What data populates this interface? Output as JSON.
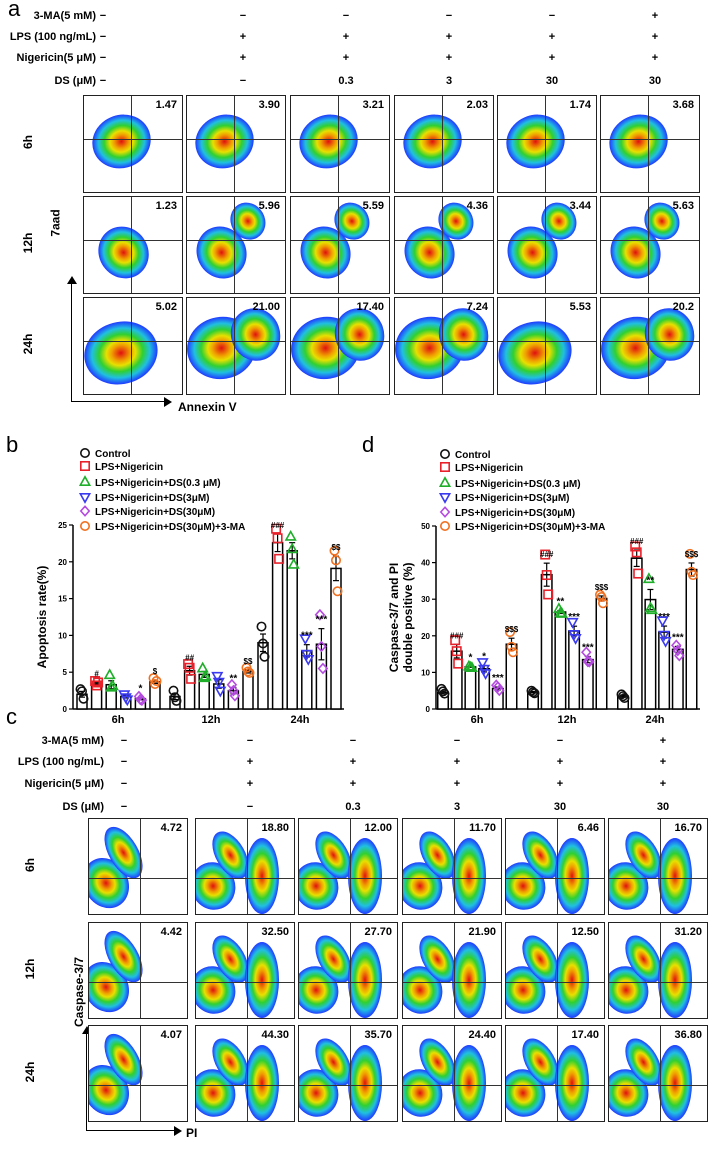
{
  "panel_letters": {
    "a": "a",
    "b": "b",
    "c": "c",
    "d": "d"
  },
  "panel_a": {
    "row_labels": [
      "3-MA(5 mM)",
      "LPS (100 ng/mL)",
      "Nigericin(5 μM)",
      "DS (μM)"
    ],
    "marks": [
      [
        "−",
        "−",
        "−",
        "−",
        "−",
        "+"
      ],
      [
        "−",
        "+",
        "+",
        "+",
        "+",
        "+"
      ],
      [
        "−",
        "+",
        "+",
        "+",
        "+",
        "+"
      ],
      [
        "−",
        "−",
        "0.3",
        "3",
        "30",
        "30"
      ]
    ],
    "times": [
      "6h",
      "12h",
      "24h"
    ],
    "values": [
      [
        "1.47",
        "3.90",
        "3.21",
        "2.03",
        "1.74",
        "3.68"
      ],
      [
        "1.23",
        "5.96",
        "5.59",
        "4.36",
        "3.44",
        "5.63"
      ],
      [
        "5.02",
        "21.00",
        "17.40",
        "7.24",
        "5.53",
        "20.2"
      ]
    ],
    "y_axis": "7aad",
    "x_axis": "Annexin V"
  },
  "panel_c": {
    "row_labels": [
      "3-MA(5 mM)",
      "LPS (100 ng/mL)",
      "Nigericin(5 μM)",
      "DS (μM)"
    ],
    "marks": [
      [
        "−",
        "−",
        "−",
        "−",
        "−",
        "+"
      ],
      [
        "−",
        "+",
        "+",
        "+",
        "+",
        "+"
      ],
      [
        "−",
        "+",
        "+",
        "+",
        "+",
        "+"
      ],
      [
        "−",
        "−",
        "0.3",
        "3",
        "30",
        "30"
      ]
    ],
    "times": [
      "6h",
      "12h",
      "24h"
    ],
    "values": [
      [
        "4.72",
        "18.80",
        "12.00",
        "11.70",
        "6.46",
        "16.70"
      ],
      [
        "4.42",
        "32.50",
        "27.70",
        "21.90",
        "12.50",
        "31.20"
      ],
      [
        "4.07",
        "44.30",
        "35.70",
        "24.40",
        "17.40",
        "36.80"
      ]
    ],
    "y_axis": "Caspase-3/7",
    "x_axis": "PI"
  },
  "colors": [
    "#111111",
    "#e8202a",
    "#1fae2a",
    "#3a3af0",
    "#b44be0",
    "#f07020"
  ],
  "chart_data": [
    {
      "type": "bar",
      "title": "",
      "ylabel": "Apoptosis rate(%)",
      "xlabel": "",
      "ylim": [
        0,
        25
      ],
      "yticks": [
        "0",
        "5",
        "10",
        "15",
        "20",
        "25"
      ],
      "categories": [
        "6h",
        "12h",
        "24h"
      ],
      "legend": [
        "Control",
        "LPS+Nigericin",
        "LPS+Nigericin+DS(0.3 μM)",
        "LPS+Nigericin+DS(3μM)",
        "LPS+Nigericin+DS(30μM)",
        "LPS+Nigericin+DS(30μM)+3-MA"
      ],
      "legend_position": "top-left",
      "series": [
        {
          "name": "Control",
          "values": [
            2.0,
            1.7,
            9.0
          ],
          "points": [
            [
              2.7,
              2.4,
              1.4
            ],
            [
              2.5,
              1.6,
              1.1
            ],
            [
              11.2,
              8.9,
              7.1
            ]
          ],
          "marker": "circle",
          "annotations": [
            "",
            "",
            ""
          ]
        },
        {
          "name": "LPS+Nigericin",
          "values": [
            3.4,
            5.2,
            22.6
          ],
          "points": [
            [
              3.8,
              3.2,
              3.6
            ],
            [
              6.1,
              5.6,
              4.1
            ],
            [
              24.5,
              23.2,
              20.4
            ]
          ],
          "marker": "square",
          "annotations": [
            "#",
            "##",
            "###"
          ]
        },
        {
          "name": "LPS+Nigericin+DS(0.3 μM)",
          "values": [
            3.3,
            4.7,
            21.5
          ],
          "points": [
            [
              4.6,
              2.9,
              3.1
            ],
            [
              5.5,
              4.2,
              4.4
            ],
            [
              23.4,
              21.7,
              19.6
            ]
          ],
          "marker": "triangle-up",
          "annotations": [
            "",
            "",
            ""
          ]
        },
        {
          "name": "LPS+Nigericin+DS(3μM)",
          "values": [
            1.7,
            3.4,
            7.9
          ],
          "points": [
            [
              2.0,
              1.6,
              1.3
            ],
            [
              4.5,
              3.7,
              2.5
            ],
            [
              9.6,
              7.5,
              6.8
            ]
          ],
          "marker": "triangle-down",
          "annotations": [
            "",
            "",
            "***"
          ]
        },
        {
          "name": "LPS+Nigericin+DS(30μM)",
          "values": [
            1.4,
            2.5,
            8.8
          ],
          "points": [
            [
              1.7,
              1.3,
              1.2
            ],
            [
              3.3,
              2.5,
              1.8
            ],
            [
              12.8,
              8.5,
              5.5
            ]
          ],
          "marker": "diamond",
          "annotations": [
            "*",
            "**",
            "***"
          ]
        },
        {
          "name": "LPS+Nigericin+DS(30μM)+3-MA",
          "values": [
            3.7,
            5.1,
            19.1
          ],
          "points": [
            [
              4.2,
              3.4,
              3.8
            ],
            [
              5.6,
              5.1,
              4.9
            ],
            [
              21.5,
              20.2,
              16.0
            ]
          ],
          "marker": "hexagon",
          "annotations": [
            "$",
            "$$",
            "$$"
          ]
        }
      ]
    },
    {
      "type": "bar",
      "title": "",
      "ylabel": [
        "Caspase-3/7 and PI",
        "double positive (%)"
      ],
      "xlabel": "",
      "ylim": [
        0,
        50
      ],
      "yticks": [
        "0",
        "10",
        "20",
        "30",
        "40",
        "50"
      ],
      "categories": [
        "6h",
        "12h",
        "24h"
      ],
      "legend": [
        "Control",
        "LPS+Nigericin",
        "LPS+Nigericin+DS(0.3 μM)",
        "LPS+Nigericin+DS(3μM)",
        "LPS+Nigericin+DS(30μM)",
        "LPS+Nigericin+DS(30μM)+3-MA"
      ],
      "legend_position": "top-left",
      "series": [
        {
          "name": "Control",
          "values": [
            4.5,
            4.6,
            3.5
          ],
          "points": [
            [
              5.5,
              4.8,
              4.2
            ],
            [
              5.0,
              4.6,
              4.3
            ],
            [
              4.0,
              3.5,
              3.0
            ]
          ],
          "marker": "circle",
          "annotations": [
            "",
            "",
            ""
          ]
        },
        {
          "name": "LPS+Nigericin",
          "values": [
            15.8,
            36.7,
            41.2
          ],
          "points": [
            [
              18.8,
              15.8,
              12.4
            ],
            [
              42.2,
              36.6,
              31.3
            ],
            [
              44.4,
              42.8,
              37.0
            ]
          ],
          "marker": "square",
          "annotations": [
            "###",
            "###",
            "###"
          ]
        },
        {
          "name": "LPS+Nigericin+DS(0.3 μM)",
          "values": [
            11.5,
            26.5,
            29.9
          ],
          "points": [
            [
              11.6,
              11.3,
              11.2
            ],
            [
              27.3,
              26.2,
              26.0
            ],
            [
              35.5,
              27.5,
              27.0
            ]
          ],
          "marker": "triangle-up",
          "annotations": [
            "*",
            "**",
            "**"
          ]
        },
        {
          "name": "LPS+Nigericin+DS(3μM)",
          "values": [
            11.0,
            21.3,
            21.0
          ],
          "points": [
            [
              12.8,
              11.0,
              9.8
            ],
            [
              23.8,
              20.5,
              19.4
            ],
            [
              24.2,
              20.3,
              18.6
            ]
          ],
          "marker": "triangle-down",
          "annotations": [
            "*",
            "***",
            "***"
          ]
        },
        {
          "name": "LPS+Nigericin+DS(30μM)",
          "values": [
            5.6,
            13.5,
            16.3
          ],
          "points": [
            [
              6.5,
              6.0,
              5.1
            ],
            [
              15.5,
              13.0,
              12.9
            ],
            [
              17.4,
              16.0,
              14.6
            ]
          ],
          "marker": "diamond",
          "annotations": [
            "***",
            "***",
            "***"
          ]
        },
        {
          "name": "LPS+Nigericin+DS(30μM)+3-MA",
          "values": [
            17.7,
            30.2,
            38.1
          ],
          "points": [
            [
              21.0,
              17.0,
              15.5
            ],
            [
              31.2,
              30.6,
              28.9
            ],
            [
              42.4,
              37.5,
              36.6
            ]
          ],
          "marker": "hexagon",
          "annotations": [
            "$$$",
            "$$$",
            "$$$"
          ]
        }
      ]
    }
  ]
}
